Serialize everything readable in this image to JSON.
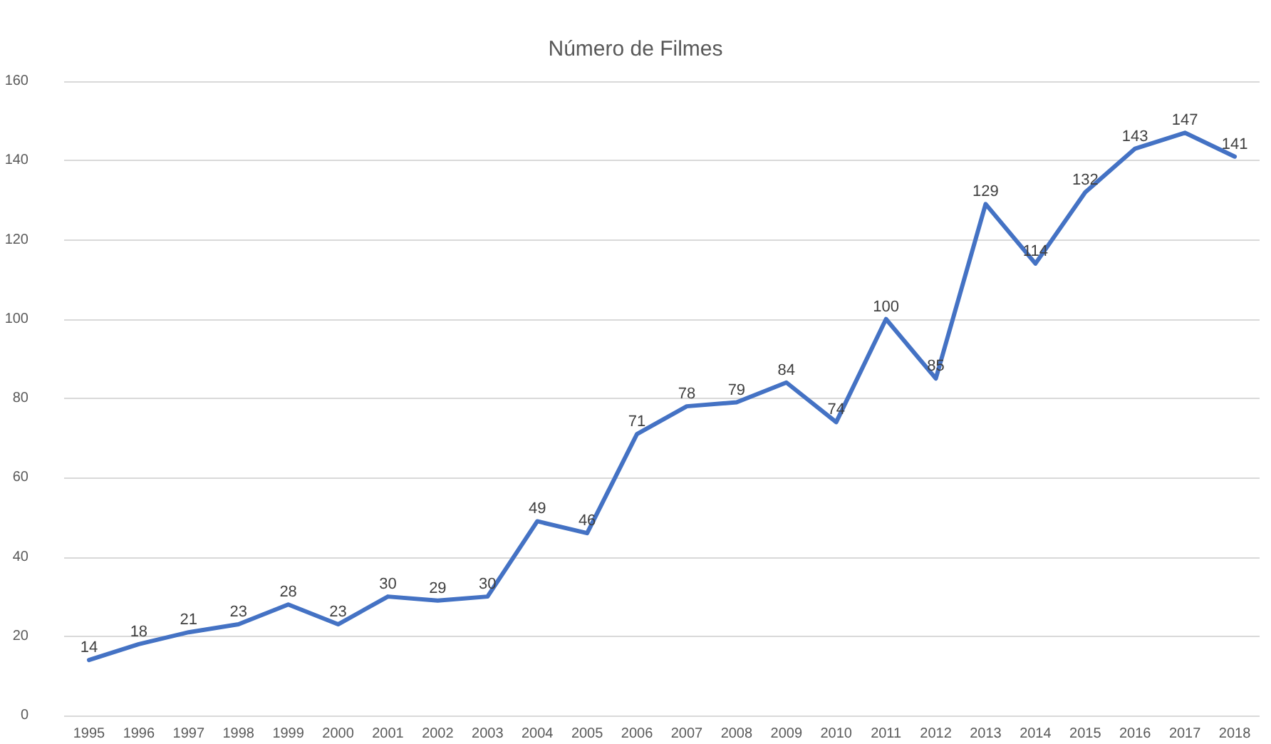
{
  "chart_data": {
    "type": "line",
    "title": "Número de Filmes",
    "categories": [
      "1995",
      "1996",
      "1997",
      "1998",
      "1999",
      "2000",
      "2001",
      "2002",
      "2003",
      "2004",
      "2005",
      "2006",
      "2007",
      "2008",
      "2009",
      "2010",
      "2011",
      "2012",
      "2013",
      "2014",
      "2015",
      "2016",
      "2017",
      "2018"
    ],
    "series": [
      {
        "color": "#4472c4",
        "values": [
          14,
          18,
          21,
          23,
          28,
          23,
          30,
          29,
          30,
          49,
          46,
          71,
          78,
          79,
          84,
          74,
          100,
          85,
          129,
          114,
          132,
          143,
          147,
          141
        ]
      }
    ],
    "ylim": [
      0,
      160
    ],
    "yticks": [
      0,
      20,
      40,
      60,
      80,
      100,
      120,
      140,
      160
    ],
    "grid": "y",
    "data_labels": true,
    "marker": "none",
    "line_style": "solid"
  }
}
